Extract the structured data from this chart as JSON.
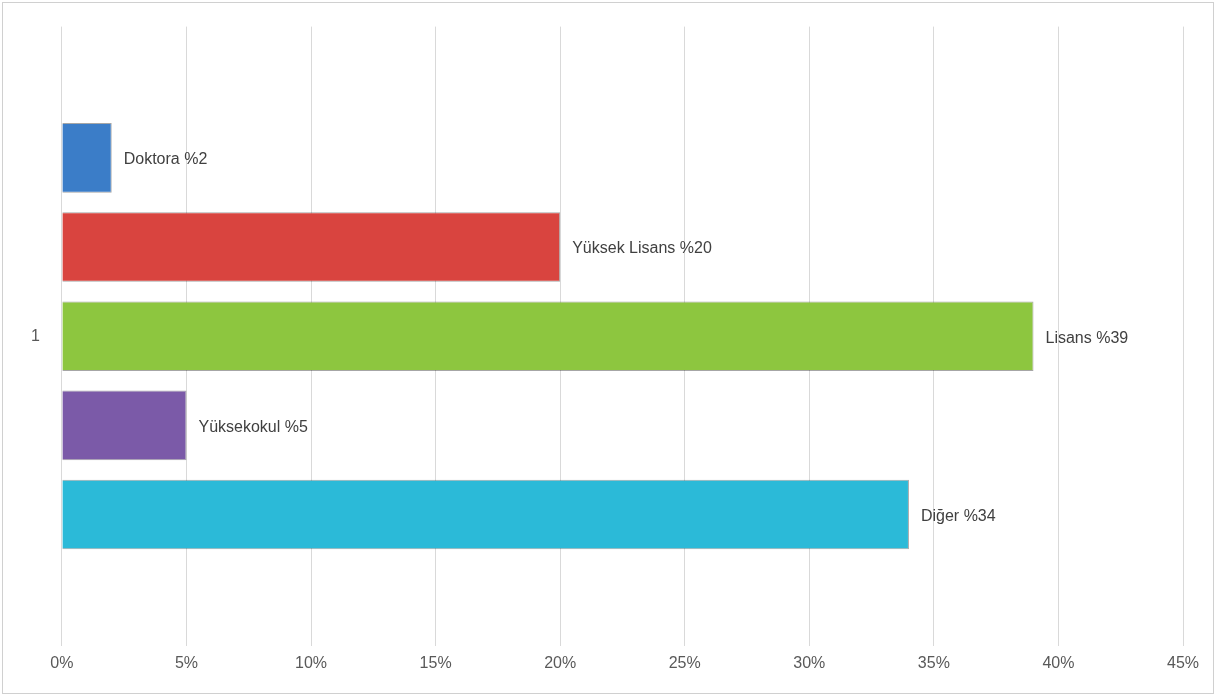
{
  "chart_data": {
    "type": "bar",
    "orientation": "horizontal",
    "categories": [
      "1"
    ],
    "series": [
      {
        "name": "Doktora",
        "color": "#3b7dc8",
        "values": [
          2
        ],
        "value_labels": [
          "%2"
        ]
      },
      {
        "name": "Yüksek Lisans",
        "color": "#d9443f",
        "values": [
          20
        ],
        "value_labels": [
          "%20"
        ]
      },
      {
        "name": "Lisans",
        "color": "#8dc63f",
        "values": [
          39
        ],
        "value_labels": [
          "%39"
        ]
      },
      {
        "name": "Yüksekokul",
        "color": "#7b5aa8",
        "values": [
          5
        ],
        "value_labels": [
          "%5"
        ]
      },
      {
        "name": "Diğer",
        "color": "#2bbad8",
        "values": [
          34
        ],
        "value_labels": [
          "%34"
        ]
      }
    ],
    "xlim": [
      0,
      45
    ],
    "xticks": [
      {
        "value": 0,
        "label": "0%"
      },
      {
        "value": 5,
        "label": "5%"
      },
      {
        "value": 10,
        "label": "10%"
      },
      {
        "value": 15,
        "label": "15%"
      },
      {
        "value": 20,
        "label": "20%"
      },
      {
        "value": 25,
        "label": "25%"
      },
      {
        "value": 30,
        "label": "30%"
      },
      {
        "value": 35,
        "label": "35%"
      },
      {
        "value": 40,
        "label": "40%"
      },
      {
        "value": 45,
        "label": "45%"
      }
    ],
    "grid": "x",
    "legend": false
  }
}
